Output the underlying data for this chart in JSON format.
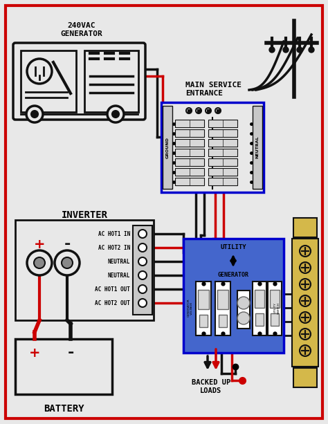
{
  "bg_color": "#e8e8e8",
  "border_color": "#cc0000",
  "wire_black": "#111111",
  "wire_red": "#cc0000",
  "panel_blue_border": "#0000cc",
  "panel_blue_bg": "#4466cc",
  "title_gen": "240VAC\nGENERATOR",
  "title_service": "MAIN SERVICE\nENTRANCE",
  "title_inverter": "INVERTER",
  "title_battery": "BATTERY",
  "title_backed": "BACKED UP\nLOADS",
  "utility_label": "UTILITY",
  "generator_label": "GENERATOR",
  "inv_terminals": [
    "AC HOT1 IN",
    "AC HOT2 IN",
    "NEUTRAL",
    "NEUTRAL",
    "AC HOT1 OUT",
    "AC HOT2 OUT"
  ],
  "ground_label": "GROUND",
  "neutral_label": "NEUTRAL"
}
